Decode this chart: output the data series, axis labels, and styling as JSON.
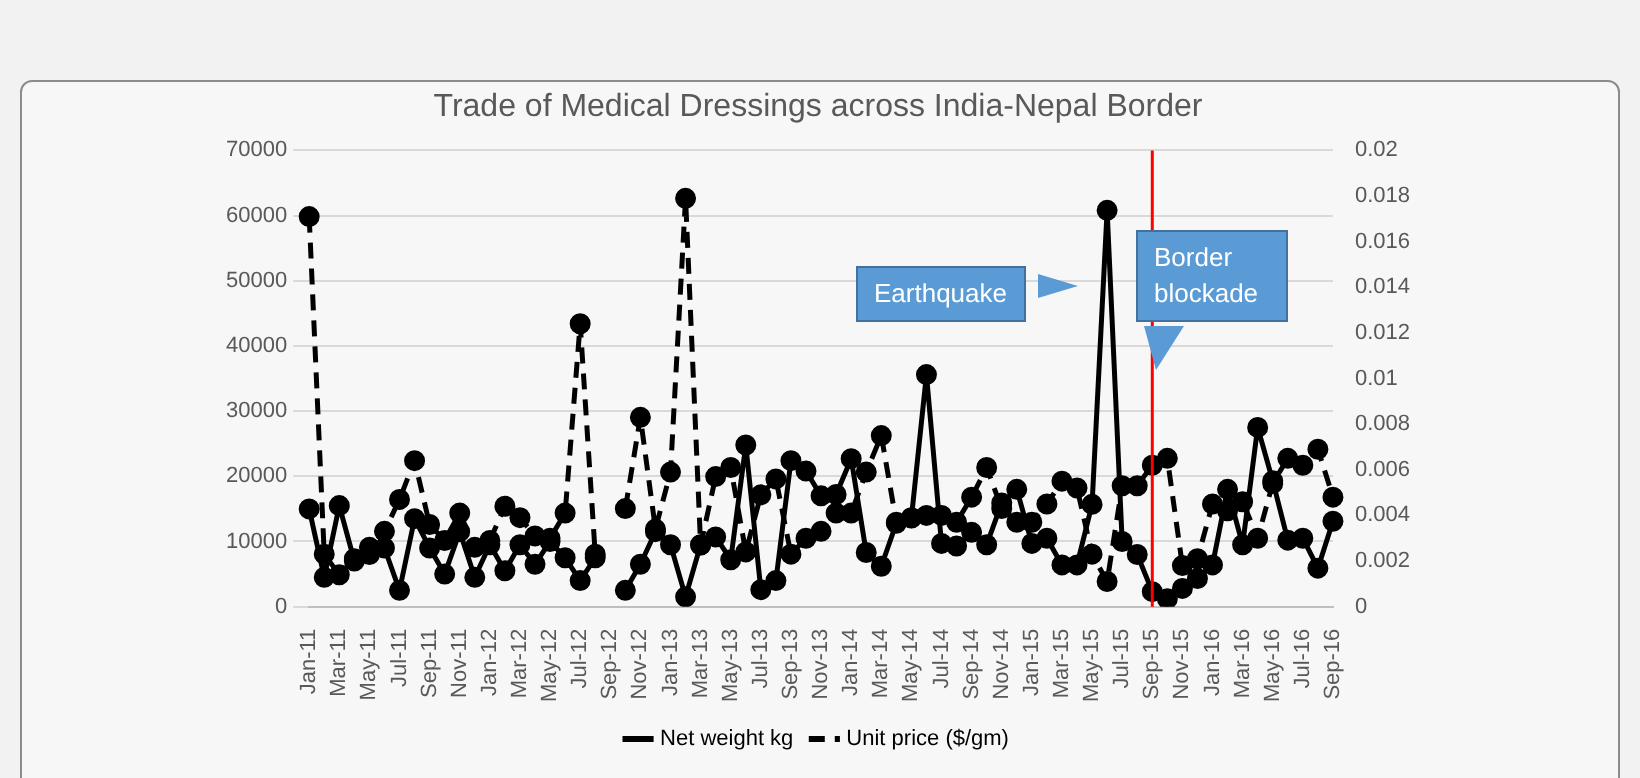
{
  "chart_data": {
    "type": "line",
    "title": "Trade of Medical Dressings across India-Nepal Border",
    "categories": [
      "Jan-11",
      null,
      "Mar-11",
      null,
      "May-11",
      null,
      "Jul-11",
      null,
      "Sep-11",
      null,
      "Nov-11",
      null,
      "Jan-12",
      null,
      "Mar-12",
      null,
      "May-12",
      null,
      "Jul-12",
      null,
      "Sep-12",
      null,
      "Nov-12",
      null,
      "Jan-13",
      null,
      "Mar-13",
      null,
      "May-13",
      null,
      "Jul-13",
      null,
      "Sep-13",
      null,
      "Nov-13",
      null,
      "Jan-14",
      null,
      "Mar-14",
      null,
      "May-14",
      null,
      "Jul-14",
      null,
      "Sep-14",
      null,
      "Nov-14",
      null,
      "Jan-15",
      null,
      "Mar-15",
      null,
      "May-15",
      null,
      "Jul-15",
      null,
      "Sep-15",
      null,
      "Nov-15",
      null,
      "Jan-16",
      null,
      "Mar-16",
      null,
      "May-16",
      null,
      "Jul-16",
      null,
      "Sep-16"
    ],
    "series": [
      {
        "name": "Net weight kg",
        "color": "#000000",
        "line_style": "solid",
        "values": [
          15000,
          4500,
          15500,
          7000,
          8000,
          9000,
          2500,
          13500,
          9000,
          5000,
          11500,
          4500,
          9500,
          5500,
          9500,
          6500,
          10000,
          7500,
          4000,
          7500,
          null,
          2500,
          6500,
          11500,
          9500,
          1500,
          9500,
          10700,
          7200,
          24800,
          2600,
          4000,
          22400,
          20800,
          17000,
          17200,
          22700,
          8300,
          6200,
          12800,
          13600,
          35600,
          9700,
          9300,
          11400,
          9500,
          15900,
          18000,
          9700,
          10500,
          6400,
          6400,
          15700,
          60800,
          10000,
          8000,
          2300,
          1200,
          2800,
          4300,
          6400,
          18000,
          9500,
          27500,
          19300,
          10200,
          10500,
          5900,
          13100
        ]
      },
      {
        "name": "Unit price ($/gm)",
        "color": "#000000",
        "line_style": "dashed",
        "axis": "y2",
        "values": [
          0.0171,
          0.0023,
          0.0014,
          0.0021,
          0.0026,
          0.0033,
          0.0047,
          0.0064,
          0.0036,
          0.0029,
          0.0041,
          0.0026,
          0.0029,
          0.0044,
          0.0039,
          0.0031,
          0.003,
          0.0041,
          0.0124,
          0.0023,
          null,
          0.0043,
          0.0083,
          0.0034,
          0.0059,
          0.0179,
          0.0027,
          0.0057,
          0.0061,
          0.0024,
          0.0049,
          0.0056,
          0.0023,
          0.003,
          0.0033,
          0.0041,
          0.0041,
          0.0059,
          0.0075,
          0.0037,
          0.0039,
          0.004,
          0.004,
          0.0037,
          0.0048,
          0.0061,
          0.0043,
          0.0037,
          0.0037,
          0.0045,
          0.0055,
          0.0052,
          0.0023,
          0.0011,
          0.0053,
          0.0053,
          0.0062,
          0.0065,
          0.0018,
          0.0021,
          0.0045,
          0.0042,
          0.0046,
          0.003,
          0.0054,
          0.0065,
          0.0062,
          0.0069,
          0.0048
        ]
      }
    ],
    "ylim": [
      0,
      70000
    ],
    "yticks": [
      0,
      10000,
      20000,
      30000,
      40000,
      50000,
      60000,
      70000
    ],
    "y2lim": [
      0,
      0.02
    ],
    "y2ticks": [
      0,
      0.002,
      0.004,
      0.006,
      0.008,
      0.01,
      0.012,
      0.014,
      0.016,
      0.018,
      0.02
    ],
    "ref_lines": [
      {
        "axis": "x",
        "value": "Sep-15",
        "label": "Border blockade",
        "color": "#ff0000"
      }
    ],
    "annotations": [
      "Earthquake"
    ],
    "grid": "y",
    "legend": "bottom",
    "marker": "circle"
  }
}
